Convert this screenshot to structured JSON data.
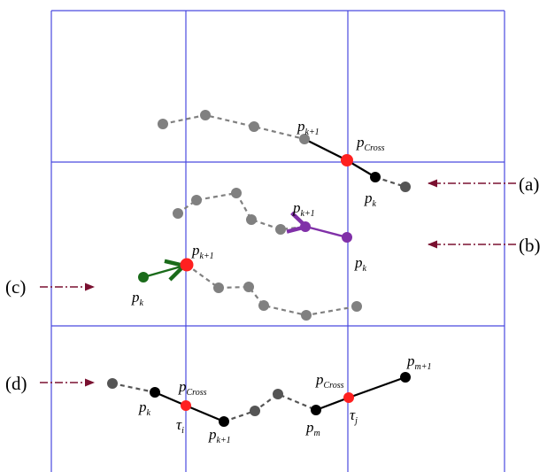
{
  "colors": {
    "grid": "#4a4adf",
    "point_gray": "#808080",
    "point_dark": "#555555",
    "point_black": "#000000",
    "cross_red": "#ff2020",
    "purple": "#8030a8",
    "green": "#1a6b1a",
    "arrow_maroon": "#7a1030"
  },
  "row_labels": {
    "a": "(a)",
    "b": "(b)",
    "c": "(c)",
    "d": "(d)"
  },
  "labels": {
    "a_pk1": {
      "base": "p",
      "sub": "k+1"
    },
    "a_pcross": {
      "base": "p",
      "sub": "Cross"
    },
    "a_pk": {
      "base": "p",
      "sub": "k"
    },
    "b_pk1": {
      "base": "p",
      "sub": "k+1"
    },
    "b_pk": {
      "base": "p",
      "sub": "k"
    },
    "c_pk1": {
      "base": "p",
      "sub": "k+1"
    },
    "c_pk": {
      "base": "p",
      "sub": "k"
    },
    "d_pk": {
      "base": "p",
      "sub": "k"
    },
    "d_pcross1": {
      "base": "p",
      "sub": "Cross"
    },
    "d_tau_i": {
      "base": "τ",
      "sub": "i"
    },
    "d_pk1": {
      "base": "p",
      "sub": "k+1"
    },
    "d_pm": {
      "base": "p",
      "sub": "m"
    },
    "d_pcross2": {
      "base": "p",
      "sub": "Cross"
    },
    "d_tau_j": {
      "base": "τ",
      "sub": "j"
    },
    "d_pm1": {
      "base": "p",
      "sub": "m+1"
    }
  }
}
